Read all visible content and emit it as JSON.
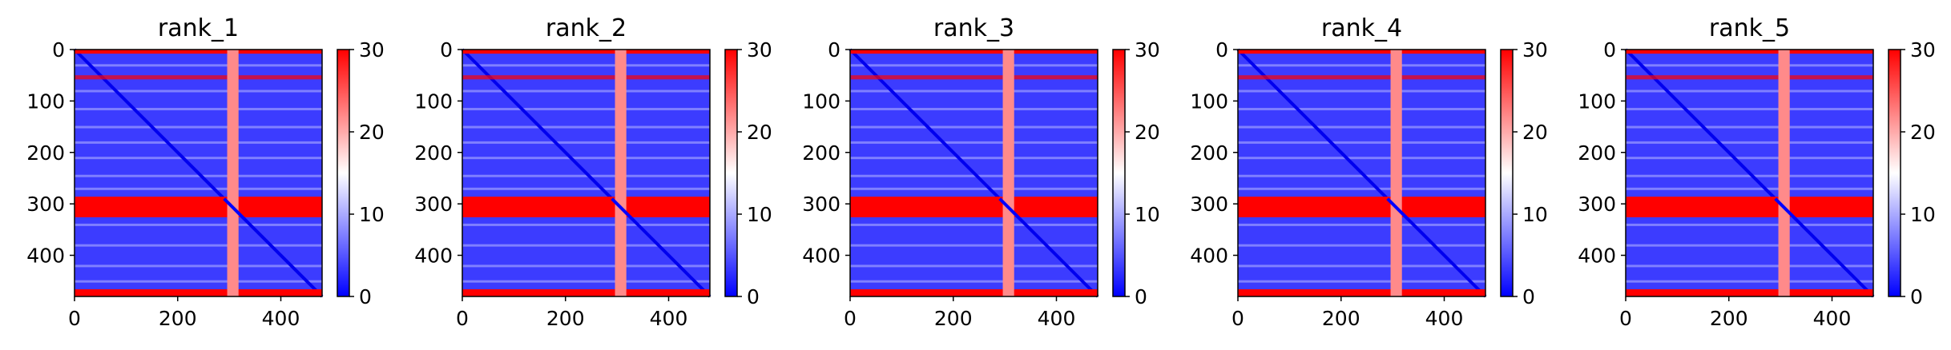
{
  "chart_data": [
    {
      "type": "heatmap",
      "title": "rank_1",
      "xlabel": "",
      "ylabel": "",
      "xlim": [
        0,
        480
      ],
      "ylim": [
        480,
        0
      ],
      "xticks": [
        0,
        200,
        400
      ],
      "yticks": [
        0,
        100,
        200,
        300,
        400
      ],
      "colorbar": {
        "range": [
          0,
          30
        ],
        "ticks": [
          0,
          10,
          20,
          30
        ],
        "colormap": "bwr"
      },
      "features": {
        "high_bands": [
          {
            "from": 0,
            "to": 8
          },
          {
            "from": 50,
            "to": 58
          },
          {
            "from": 286,
            "to": 326
          },
          {
            "from": 466,
            "to": 480
          }
        ],
        "high_column": {
          "from": 296,
          "to": 318
        },
        "diagonal": true
      }
    },
    {
      "type": "heatmap",
      "title": "rank_2",
      "xlabel": "",
      "ylabel": "",
      "xlim": [
        0,
        480
      ],
      "ylim": [
        480,
        0
      ],
      "xticks": [
        0,
        200,
        400
      ],
      "yticks": [
        0,
        100,
        200,
        300,
        400
      ],
      "colorbar": {
        "range": [
          0,
          30
        ],
        "ticks": [
          0,
          10,
          20,
          30
        ],
        "colormap": "bwr"
      },
      "features": {
        "high_bands": [
          {
            "from": 0,
            "to": 8
          },
          {
            "from": 50,
            "to": 58
          },
          {
            "from": 286,
            "to": 326
          },
          {
            "from": 466,
            "to": 480
          }
        ],
        "high_column": {
          "from": 296,
          "to": 318
        },
        "diagonal": true
      }
    },
    {
      "type": "heatmap",
      "title": "rank_3",
      "xlabel": "",
      "ylabel": "",
      "xlim": [
        0,
        480
      ],
      "ylim": [
        480,
        0
      ],
      "xticks": [
        0,
        200,
        400
      ],
      "yticks": [
        0,
        100,
        200,
        300,
        400
      ],
      "colorbar": {
        "range": [
          0,
          30
        ],
        "ticks": [
          0,
          10,
          20,
          30
        ],
        "colormap": "bwr"
      },
      "features": {
        "high_bands": [
          {
            "from": 0,
            "to": 8
          },
          {
            "from": 50,
            "to": 58
          },
          {
            "from": 286,
            "to": 326
          },
          {
            "from": 466,
            "to": 480
          }
        ],
        "high_column": {
          "from": 296,
          "to": 318
        },
        "diagonal": true
      }
    },
    {
      "type": "heatmap",
      "title": "rank_4",
      "xlabel": "",
      "ylabel": "",
      "xlim": [
        0,
        480
      ],
      "ylim": [
        480,
        0
      ],
      "xticks": [
        0,
        200,
        400
      ],
      "yticks": [
        0,
        100,
        200,
        300,
        400
      ],
      "colorbar": {
        "range": [
          0,
          30
        ],
        "ticks": [
          0,
          10,
          20,
          30
        ],
        "colormap": "bwr"
      },
      "features": {
        "high_bands": [
          {
            "from": 0,
            "to": 8
          },
          {
            "from": 50,
            "to": 58
          },
          {
            "from": 286,
            "to": 326
          },
          {
            "from": 466,
            "to": 480
          }
        ],
        "high_column": {
          "from": 296,
          "to": 318
        },
        "diagonal": true
      }
    },
    {
      "type": "heatmap",
      "title": "rank_5",
      "xlabel": "",
      "ylabel": "",
      "xlim": [
        0,
        480
      ],
      "ylim": [
        480,
        0
      ],
      "xticks": [
        0,
        200,
        400
      ],
      "yticks": [
        0,
        100,
        200,
        300,
        400
      ],
      "colorbar": {
        "range": [
          0,
          30
        ],
        "ticks": [
          0,
          10,
          20,
          30
        ],
        "colormap": "bwr"
      },
      "features": {
        "high_bands": [
          {
            "from": 0,
            "to": 8
          },
          {
            "from": 50,
            "to": 58
          },
          {
            "from": 286,
            "to": 326
          },
          {
            "from": 466,
            "to": 480
          }
        ],
        "high_column": {
          "from": 296,
          "to": 318
        },
        "diagonal": true
      }
    }
  ],
  "colors": {
    "low": "#0000ff",
    "mid": "#ffffff",
    "high": "#ff0000",
    "panel_fill": "#3c3cff",
    "axis": "#000000"
  }
}
